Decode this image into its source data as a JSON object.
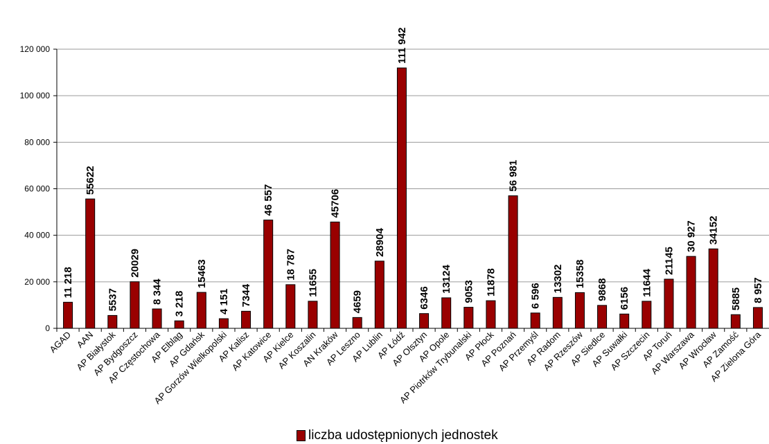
{
  "chart_data": {
    "type": "bar",
    "categories": [
      "AGAD",
      "AAN",
      "AP Białystok",
      "AP Bydgoszcz",
      "AP Częstochowa",
      "AP Elbląg",
      "AP Gdańsk",
      "AP Gorzów Wielkopolski",
      "AP Kalisz",
      "AP Katowice",
      "AP Kielce",
      "AP Koszalin",
      "AN Kraków",
      "AP Leszno",
      "AP Lublin",
      "AP Łódź",
      "AP Olsztyn",
      "AP Opole",
      "AP Piotrków Trybunalski",
      "AP Płock",
      "AP Poznań",
      "AP Przemyśl",
      "AP Radom",
      "AP Rzeszów",
      "AP Siedlce",
      "AP Suwałki",
      "AP Szczecin",
      "AP Toruń",
      "AP Warszawa",
      "AP Wrocław",
      "AP Zamość",
      "AP Zielona Góra"
    ],
    "series": [
      {
        "name": "liczba udostępnionych  jednostek",
        "values": [
          11218,
          55622,
          5537,
          20029,
          8344,
          3218,
          15463,
          4151,
          7344,
          46557,
          18787,
          11655,
          45706,
          4659,
          28904,
          111942,
          6346,
          13124,
          9053,
          11878,
          56981,
          6596,
          13302,
          15358,
          9868,
          6156,
          11644,
          21145,
          30927,
          34152,
          5885,
          8957
        ],
        "labels": [
          "11 218",
          "55622",
          "5537",
          "20029",
          "8 344",
          "3 218",
          "15463",
          "4 151",
          "7344",
          "46 557",
          "18 787",
          "11655",
          "45706",
          "4659",
          "28904",
          "111 942",
          "6346",
          "13124",
          "9053",
          "11878",
          "56 981",
          "6 596",
          "13302",
          "15358",
          "9868",
          "6156",
          "11644",
          "21145",
          "30 927",
          "34152",
          "5885",
          "8 957"
        ]
      }
    ],
    "yticks": [
      "0",
      "20 000",
      "40 000",
      "60 000",
      "80 000",
      "100 000",
      "120 000"
    ],
    "ylim": [
      0,
      120000
    ],
    "grid": true,
    "legend_position": "bottom",
    "colors": {
      "bar": "#990000",
      "bar_stroke": "#000000",
      "grid": "#9a9a9a"
    }
  }
}
